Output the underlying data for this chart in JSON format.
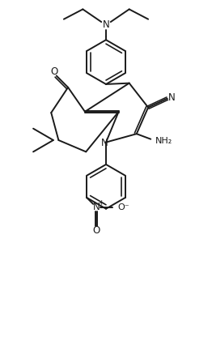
{
  "bg_color": "#ffffff",
  "line_color": "#1a1a1a",
  "line_width": 1.4,
  "figsize": [
    2.62,
    4.32
  ],
  "dpi": 100,
  "xlim": [
    0,
    10
  ],
  "ylim": [
    0,
    16
  ]
}
